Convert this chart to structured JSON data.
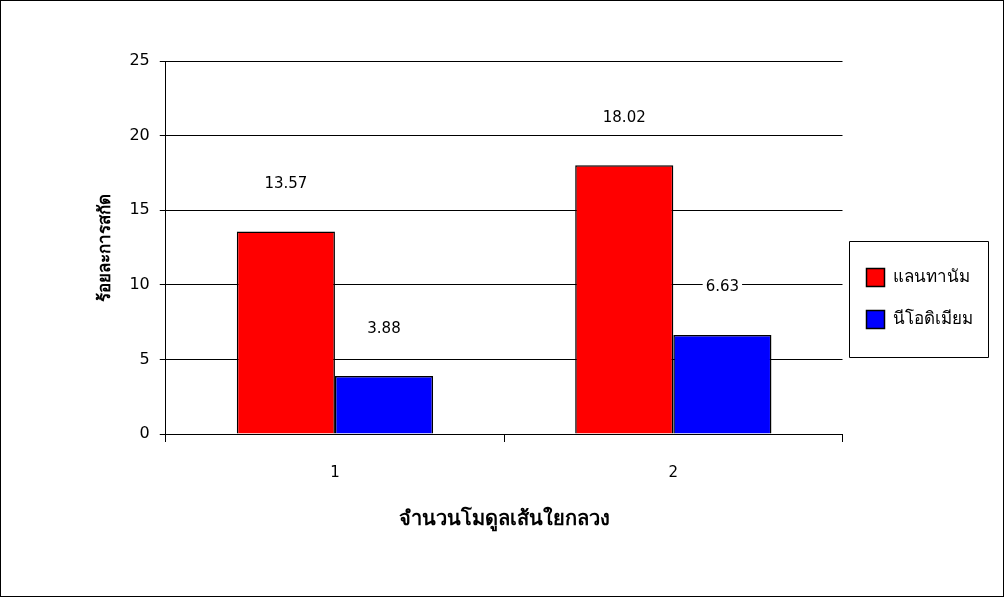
{
  "chart_data": {
    "type": "bar",
    "xlabel": "จำนวนโมดูลเส้นใยกลวง",
    "ylabel": "ร้อยละการสกัด",
    "categories": [
      "1",
      "2"
    ],
    "series": [
      {
        "name": "แลนทานัม",
        "color": "#ff0000",
        "values": [
          13.57,
          18.02
        ]
      },
      {
        "name": "นีโอดิเมียม",
        "color": "#0000ff",
        "values": [
          3.88,
          6.63
        ]
      }
    ],
    "ylim": [
      0,
      25
    ],
    "yticks": [
      0,
      5,
      10,
      15,
      20,
      25
    ],
    "grid": "y",
    "legend": "right",
    "data_labels": true
  }
}
